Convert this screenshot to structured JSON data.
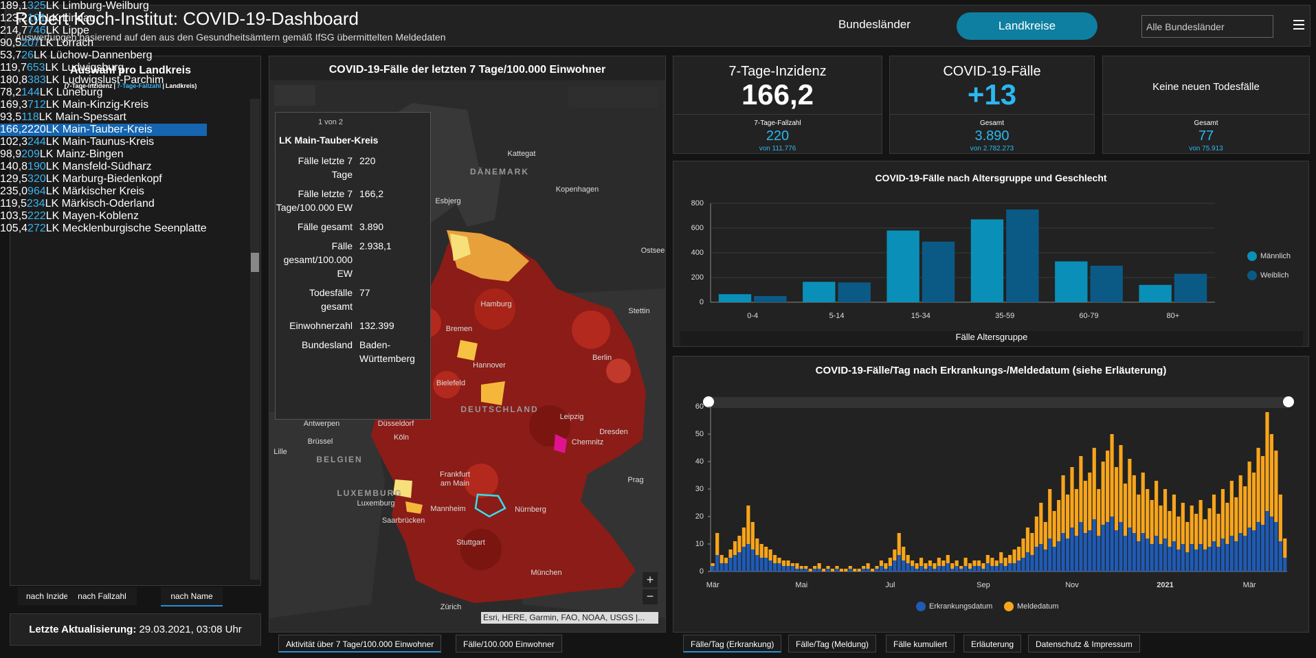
{
  "header": {
    "title": "Robert Koch-Institut: COVID-19-Dashboard",
    "subtitle": "Auswertungen basierend auf den aus den Gesundheitsämtern gemäß IfSG übermittelten Meldedaten",
    "nav": [
      "Bundesländer",
      "Landkreise"
    ],
    "dropdown": "Alle Bundesländer"
  },
  "list": {
    "title": "Auswahl pro Landkreis",
    "legend": [
      "(7-Tage-Inzidenz",
      "|",
      "7-Tage-Fallzahl",
      "|",
      "Landkreis)"
    ],
    "rows": [
      [
        "189,1",
        "325",
        "LK Limburg-Weilburg"
      ],
      [
        "123,2",
        "101",
        "LK Lindau"
      ],
      [
        "214,7",
        "746",
        "LK Lippe"
      ],
      [
        "90,5",
        "207",
        "LK Lörrach"
      ],
      [
        "53,7",
        "26",
        "LK Lüchow-Dannenberg"
      ],
      [
        "119,7",
        "653",
        "LK Ludwigsburg"
      ],
      [
        "180,8",
        "383",
        "LK Ludwigslust-Parchim"
      ],
      [
        "78,2",
        "144",
        "LK Lüneburg"
      ],
      [
        "169,3",
        "712",
        "LK Main-Kinzig-Kreis"
      ],
      [
        "93,5",
        "118",
        "LK Main-Spessart"
      ],
      [
        "166,2",
        "220",
        "LK Main-Tauber-Kreis"
      ],
      [
        "102,3",
        "244",
        "LK Main-Taunus-Kreis"
      ],
      [
        "98,9",
        "209",
        "LK Mainz-Bingen"
      ],
      [
        "140,8",
        "190",
        "LK Mansfeld-Südharz"
      ],
      [
        "129,5",
        "320",
        "LK Marburg-Biedenkopf"
      ],
      [
        "235,0",
        "964",
        "LK Märkischer Kreis"
      ],
      [
        "119,5",
        "234",
        "LK Märkisch-Oderland"
      ],
      [
        "103,5",
        "222",
        "LK Mayen-Koblenz"
      ],
      [
        "105,4",
        "272",
        "LK Mecklenburgische Seenplatte"
      ]
    ],
    "sort": [
      "nach Inzidenz",
      "nach Fallzahl",
      "nach Name"
    ],
    "update_label": "Letzte Aktualisierung:",
    "update_value": "29.03.2021, 03:08 Uhr"
  },
  "map": {
    "title": "COVID-19-Fälle der letzten 7 Tage/100.000 Einwohner",
    "popup": {
      "pager": "1 von 2",
      "title": "LK Main-Tauber-Kreis",
      "fields": [
        [
          "Fälle letzte 7 Tage",
          "220"
        ],
        [
          "Fälle letzte 7 Tage/100.000 EW",
          "166,2"
        ],
        [
          "Fälle gesamt",
          "3.890"
        ],
        [
          "Fälle gesamt/100.000 EW",
          "2.938,1"
        ],
        [
          "Todesfälle gesamt",
          "77"
        ],
        [
          "Einwohnerzahl",
          "132.399"
        ],
        [
          "Bundesland",
          "Baden-Württemberg"
        ]
      ]
    },
    "labels": [
      "Kattegat",
      "DÄNEMARK",
      "Kopenhagen",
      "Esbjerg",
      "Ostsee",
      "Hamburg",
      "Stettin",
      "Bremen",
      "Hannover",
      "Berlin",
      "Bielefeld",
      "DEUTSCHLAND",
      "Leipzig",
      "Dresden",
      "Chemnitz",
      "Antwerpen",
      "Düsseldorf",
      "Brüssel",
      "Köln",
      "Lille",
      "BELGIEN",
      "Frankfurt",
      "am Main",
      "Prag",
      "LUXEMBURG",
      "Luxemburg",
      "Mannheim",
      "Nürnberg",
      "Saarbrücken",
      "Stuttgart",
      "München",
      "Zürich"
    ],
    "attribution": "Esri, HERE, Garmin, FAO, NOAA, USGS |...",
    "tabs": [
      "Aktivität über 7 Tage/100.000 Einwohner",
      "Fälle/100.000 Einwohner"
    ]
  },
  "kpis": [
    {
      "title": "7-Tage-Inzidenz",
      "value": "166,2",
      "sub_label": "7-Tage-Fallzahl",
      "sub_value": "220",
      "sub_total": "von 111.776"
    },
    {
      "title": "COVID-19-Fälle",
      "value": "+13",
      "sub_label": "Gesamt",
      "sub_value": "3.890",
      "sub_total": "von 2.782.273"
    },
    {
      "title": "Keine neuen Todesfälle",
      "sub_label": "Gesamt",
      "sub_value": "77",
      "sub_total": "von 75.913"
    }
  ],
  "chart_data": [
    {
      "type": "bar",
      "title": "COVID-19-Fälle nach Altersgruppe und Geschlecht",
      "x_label": "Fälle Altersgruppe",
      "categories": [
        "0-4",
        "5-14",
        "15-34",
        "35-59",
        "60-79",
        "80+"
      ],
      "series": [
        {
          "name": "Männlich",
          "color": "#0a8fb8",
          "values": [
            65,
            165,
            580,
            670,
            330,
            140
          ]
        },
        {
          "name": "Weiblich",
          "color": "#0b5a86",
          "values": [
            50,
            160,
            490,
            750,
            295,
            230
          ]
        }
      ],
      "ylim": [
        0,
        800
      ],
      "yticks": [
        0,
        200,
        400,
        600,
        800
      ],
      "grid": true,
      "stacked": false,
      "legend": "right"
    },
    {
      "type": "bar",
      "title": "COVID-19-Fälle/Tag nach Erkrankungs-/Meldedatum (siehe Erläuterung)",
      "categories": [
        "Mär",
        null,
        null,
        null,
        null,
        null,
        null,
        null,
        null,
        null,
        null,
        null,
        null,
        null,
        null,
        null,
        null,
        null,
        null,
        null,
        "Mai",
        null,
        null,
        null,
        null,
        null,
        null,
        null,
        null,
        null,
        null,
        null,
        null,
        null,
        null,
        null,
        null,
        null,
        null,
        null,
        "Jul",
        null,
        null,
        null,
        null,
        null,
        null,
        null,
        null,
        null,
        null,
        null,
        null,
        null,
        null,
        null,
        null,
        null,
        null,
        null,
        null,
        "Sep",
        null,
        null,
        null,
        null,
        null,
        null,
        null,
        null,
        null,
        null,
        null,
        null,
        null,
        null,
        null,
        null,
        null,
        null,
        null,
        "Nov",
        null,
        null,
        null,
        null,
        null,
        null,
        null,
        null,
        null,
        null,
        null,
        null,
        null,
        null,
        null,
        null,
        null,
        null,
        null,
        null,
        "2021",
        null,
        null,
        null,
        null,
        null,
        null,
        null,
        null,
        null,
        null,
        null,
        null,
        null,
        null,
        null,
        null,
        null,
        null,
        "Mär",
        null,
        null,
        null,
        null,
        null,
        null,
        null,
        null
      ],
      "series": [
        {
          "name": "Erkrankungsdatum",
          "color": "#1f5bb5",
          "values": [
            2,
            6,
            3,
            3,
            5,
            6,
            7,
            9,
            10,
            8,
            6,
            5,
            5,
            4,
            3,
            3,
            2,
            2,
            2,
            1,
            1,
            1,
            0,
            1,
            1,
            0,
            1,
            0,
            1,
            0,
            0,
            1,
            0,
            0,
            1,
            1,
            0,
            1,
            2,
            1,
            2,
            4,
            6,
            4,
            3,
            2,
            1,
            2,
            1,
            2,
            1,
            2,
            2,
            3,
            1,
            2,
            1,
            2,
            1,
            2,
            2,
            1,
            3,
            2,
            2,
            3,
            2,
            3,
            3,
            4,
            5,
            7,
            6,
            9,
            10,
            8,
            12,
            9,
            11,
            14,
            12,
            16,
            13,
            18,
            14,
            15,
            19,
            13,
            17,
            18,
            20,
            15,
            18,
            13,
            16,
            14,
            11,
            14,
            12,
            10,
            13,
            10,
            12,
            9,
            11,
            8,
            10,
            7,
            10,
            8,
            10,
            8,
            9,
            11,
            9,
            12,
            10,
            13,
            11,
            14,
            13,
            16,
            15,
            18,
            17,
            22,
            20,
            18,
            11,
            5
          ]
        },
        {
          "name": "Meldedatum",
          "color": "#f8a51b",
          "values": [
            1,
            8,
            3,
            2,
            3,
            5,
            6,
            7,
            14,
            10,
            6,
            5,
            4,
            4,
            3,
            2,
            2,
            2,
            1,
            2,
            1,
            1,
            1,
            1,
            2,
            1,
            1,
            1,
            1,
            1,
            1,
            1,
            1,
            1,
            1,
            2,
            1,
            1,
            2,
            2,
            3,
            4,
            8,
            5,
            3,
            2,
            2,
            3,
            2,
            2,
            2,
            3,
            2,
            3,
            2,
            2,
            1,
            3,
            2,
            2,
            2,
            2,
            3,
            3,
            2,
            4,
            3,
            3,
            5,
            5,
            7,
            9,
            8,
            11,
            15,
            10,
            18,
            13,
            15,
            21,
            16,
            22,
            17,
            24,
            19,
            21,
            26,
            17,
            23,
            26,
            30,
            23,
            28,
            19,
            25,
            21,
            17,
            22,
            18,
            16,
            20,
            14,
            18,
            13,
            17,
            12,
            15,
            11,
            14,
            13,
            16,
            11,
            14,
            17,
            12,
            18,
            15,
            20,
            16,
            21,
            18,
            24,
            21,
            27,
            25,
            36,
            30,
            26,
            17,
            7
          ]
        }
      ],
      "ylim": [
        0,
        60
      ],
      "yticks": [
        0,
        10,
        20,
        30,
        40,
        50,
        60
      ],
      "grid": false,
      "stacked": true,
      "legend": "bottom"
    }
  ],
  "chart_tabs": [
    "Fälle/Tag (Erkrankung)",
    "Fälle/Tag (Meldung)",
    "Fälle kumuliert",
    "Erläuterung",
    "Datenschutz & Impressum"
  ]
}
